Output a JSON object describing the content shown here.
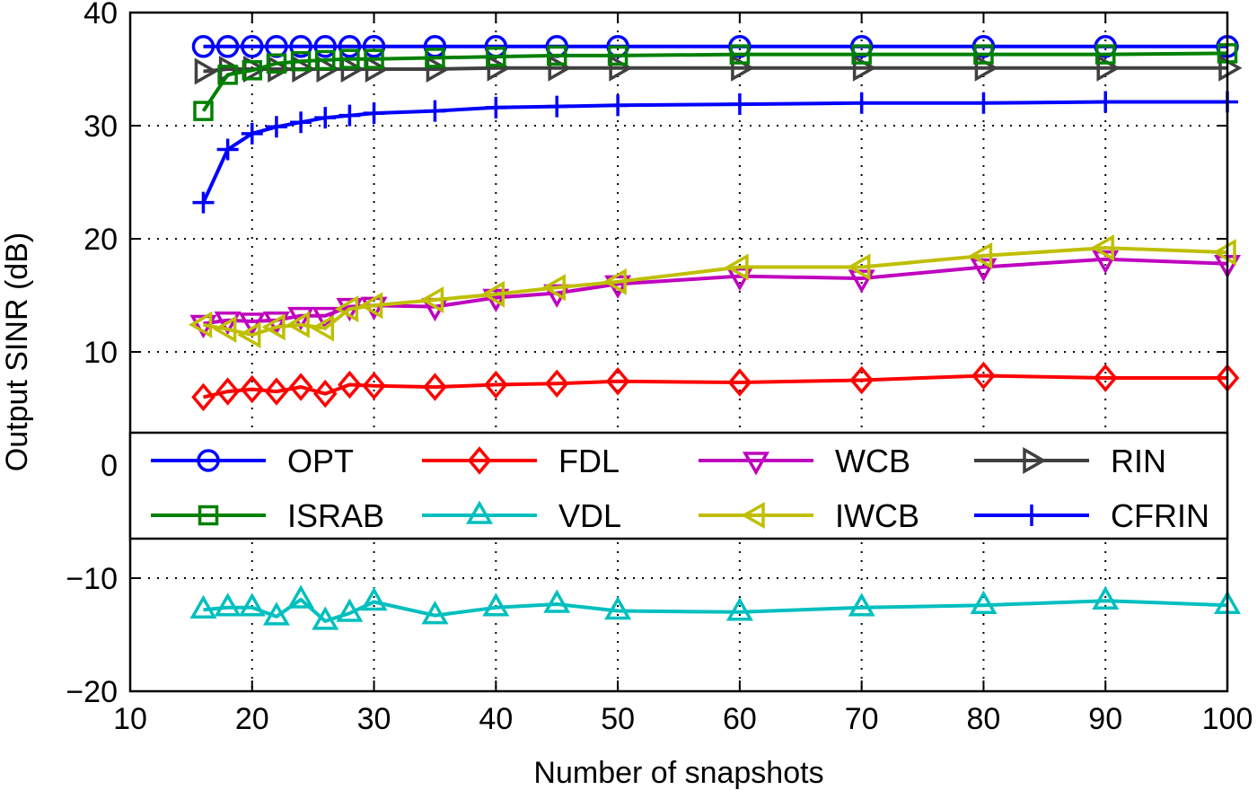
{
  "chart_data": {
    "type": "line",
    "title": "",
    "xlabel": "Number of snapshots",
    "ylabel": "Output SINR (dB)",
    "xlim": [
      10,
      100
    ],
    "ylim": [
      -20,
      40
    ],
    "xticks": [
      10,
      20,
      30,
      40,
      50,
      60,
      70,
      80,
      90,
      100
    ],
    "yticks": [
      -20,
      -10,
      0,
      10,
      20,
      30,
      40
    ],
    "xtick_labels": [
      "10",
      "20",
      "30",
      "40",
      "50",
      "60",
      "70",
      "80",
      "90",
      "100"
    ],
    "ytick_labels": [
      "−20",
      "−10",
      "0",
      "10",
      "20",
      "30",
      "40"
    ],
    "grid": true,
    "legend_position": "center, 4 columns",
    "x": [
      16,
      18,
      20,
      22,
      24,
      26,
      28,
      30,
      35,
      40,
      45,
      50,
      60,
      70,
      80,
      90,
      100
    ],
    "series": [
      {
        "name": "OPT",
        "color": "#0000ff",
        "marker": "circle",
        "values": [
          37.0,
          37.0,
          37.0,
          37.0,
          37.0,
          37.0,
          37.0,
          37.0,
          37.0,
          37.0,
          37.0,
          37.0,
          37.0,
          37.0,
          37.0,
          37.0,
          37.0
        ]
      },
      {
        "name": "FDL",
        "color": "#ff0000",
        "marker": "diamond",
        "values": [
          6.0,
          6.5,
          6.7,
          6.5,
          6.9,
          6.3,
          7.1,
          7.0,
          6.9,
          7.1,
          7.2,
          7.4,
          7.3,
          7.5,
          7.9,
          7.7,
          7.7
        ]
      },
      {
        "name": "WCB",
        "color": "#bf00bf",
        "marker": "triangle-down",
        "values": [
          12.5,
          12.8,
          12.7,
          12.8,
          13.2,
          13.2,
          14.0,
          14.1,
          14.0,
          14.8,
          15.2,
          16.0,
          16.7,
          16.5,
          17.5,
          18.2,
          17.8
        ]
      },
      {
        "name": "RIN",
        "color": "#404040",
        "marker": "triangle-right",
        "values": [
          34.8,
          35.0,
          35.0,
          35.0,
          35.0,
          35.0,
          35.0,
          35.0,
          35.0,
          35.1,
          35.1,
          35.1,
          35.1,
          35.1,
          35.1,
          35.1,
          35.1
        ]
      },
      {
        "name": "ISRAB",
        "color": "#008000",
        "marker": "square",
        "values": [
          31.3,
          34.5,
          34.9,
          35.5,
          35.7,
          35.8,
          35.9,
          35.9,
          36.0,
          36.1,
          36.2,
          36.2,
          36.3,
          36.3,
          36.3,
          36.3,
          36.4
        ]
      },
      {
        "name": "VDL",
        "color": "#00bfbf",
        "marker": "triangle-up",
        "values": [
          -12.8,
          -12.6,
          -12.6,
          -13.4,
          -11.9,
          -13.8,
          -13.1,
          -12.1,
          -13.3,
          -12.6,
          -12.3,
          -12.9,
          -13.0,
          -12.6,
          -12.4,
          -12.0,
          -12.4
        ]
      },
      {
        "name": "IWCB",
        "color": "#bfbf00",
        "marker": "triangle-left",
        "values": [
          12.4,
          12.0,
          11.5,
          12.2,
          12.4,
          12.1,
          13.8,
          14.1,
          14.6,
          15.1,
          15.7,
          16.2,
          17.5,
          17.5,
          18.5,
          19.2,
          18.8
        ]
      },
      {
        "name": "CFRIN",
        "color": "#0000ff",
        "marker": "plus",
        "values": [
          23.2,
          27.9,
          29.3,
          29.9,
          30.3,
          30.7,
          30.9,
          31.1,
          31.3,
          31.6,
          31.7,
          31.8,
          31.9,
          32.0,
          32.0,
          32.1,
          32.1
        ]
      }
    ]
  }
}
